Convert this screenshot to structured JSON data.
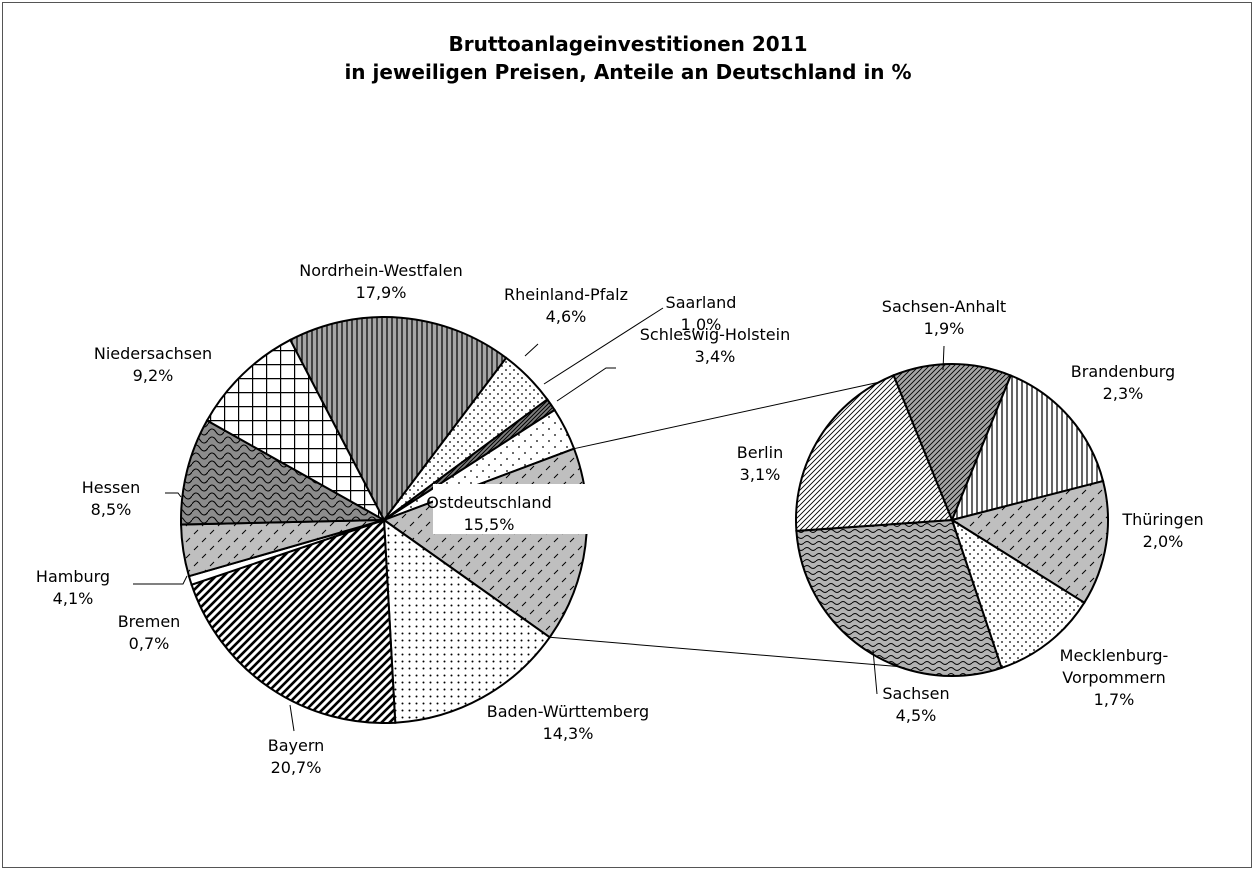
{
  "chart_data": {
    "type": "pie",
    "title": "Bruttoanlageinvestitionen 2011",
    "subtitle": "in jeweiligen Preisen, Anteile an Deutschland in %",
    "main_pie": {
      "slices": [
        {
          "name": "Nordrhein-Westfalen",
          "value": 17.9,
          "value_label": "17,9%",
          "pattern": "vstripes",
          "fill": "#a6a6a6"
        },
        {
          "name": "Rheinland-Pfalz",
          "value": 4.6,
          "value_label": "4,6%",
          "pattern": "dots",
          "fill": "#ffffff"
        },
        {
          "name": "Saarland",
          "value": 1.0,
          "value_label": "1,0%",
          "pattern": "diagdense",
          "fill": "#7f7f7f"
        },
        {
          "name": "Schleswig-Holstein",
          "value": 3.4,
          "value_label": "3,4%",
          "pattern": "dotsparse",
          "fill": "#ffffff"
        },
        {
          "name": "Ostdeutschland",
          "value": 15.5,
          "value_label": "15,5%",
          "pattern": "dashdiag",
          "fill": "#bfbfbf",
          "exploded": true
        },
        {
          "name": "Baden-Württemberg",
          "value": 14.3,
          "value_label": "14,3%",
          "pattern": "dotgrid",
          "fill": "#ffffff"
        },
        {
          "name": "Bayern",
          "value": 20.7,
          "value_label": "20,7%",
          "pattern": "diagbold",
          "fill": "#ffffff"
        },
        {
          "name": "Bremen",
          "value": 0.7,
          "value_label": "0,7%",
          "pattern": "none",
          "fill": "#ffffff"
        },
        {
          "name": "Hamburg",
          "value": 4.1,
          "value_label": "4,1%",
          "pattern": "dashdiag",
          "fill": "#bfbfbf"
        },
        {
          "name": "Hessen",
          "value": 8.5,
          "value_label": "8,5%",
          "pattern": "scales",
          "fill": "#8c8c8c"
        },
        {
          "name": "Niedersachsen",
          "value": 9.2,
          "value_label": "9,2%",
          "pattern": "grid",
          "fill": "#ffffff"
        }
      ]
    },
    "detail_pie": {
      "slices": [
        {
          "name": "Sachsen-Anhalt",
          "value": 1.9,
          "value_label": "1,9%",
          "pattern": "diagfine",
          "fill": "#a6a6a6"
        },
        {
          "name": "Brandenburg",
          "value": 2.3,
          "value_label": "2,3%",
          "pattern": "vstripes",
          "fill": "#ffffff"
        },
        {
          "name": "Thüringen",
          "value": 2.0,
          "value_label": "2,0%",
          "pattern": "dashdiag",
          "fill": "#bfbfbf"
        },
        {
          "name": "Mecklenburg-Vorpommern",
          "value": 1.7,
          "value_label": "1,7%",
          "pattern": "dots",
          "fill": "#ffffff"
        },
        {
          "name": "Sachsen",
          "value": 4.5,
          "value_label": "4,5%",
          "pattern": "waves",
          "fill": "#b3b3b3"
        },
        {
          "name": "Berlin",
          "value": 3.1,
          "value_label": "3,1%",
          "pattern": "diagfine",
          "fill": "#ffffff"
        }
      ]
    },
    "legend": "none"
  }
}
